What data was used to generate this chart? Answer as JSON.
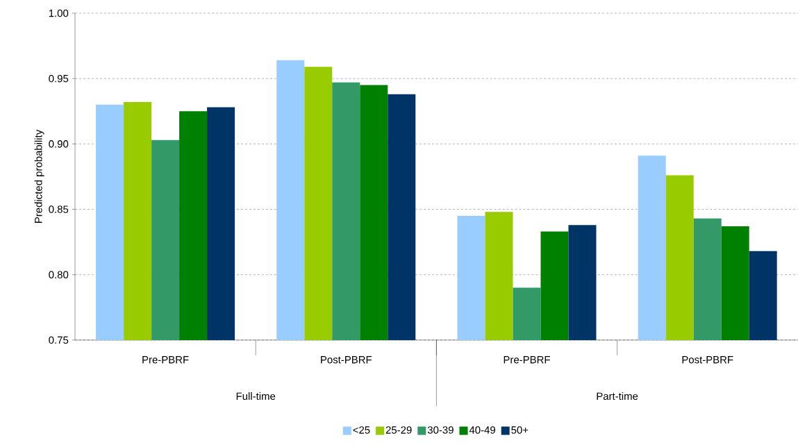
{
  "chart_data": {
    "type": "bar",
    "ylabel": "Predicted probability",
    "categories": [
      "Pre-PBRF",
      "Post-PBRF",
      "Pre-PBRF",
      "Post-PBRF"
    ],
    "annotations": [
      "Full-time",
      "Part-time"
    ],
    "series": [
      {
        "name": "<25",
        "color": "#99ccff",
        "values": [
          0.93,
          0.964,
          0.845,
          0.891
        ]
      },
      {
        "name": "25-29",
        "color": "#99cc00",
        "values": [
          0.932,
          0.959,
          0.848,
          0.876
        ]
      },
      {
        "name": "30-39",
        "color": "#339966",
        "values": [
          0.903,
          0.947,
          0.79,
          0.843
        ]
      },
      {
        "name": "40-49",
        "color": "#008000",
        "values": [
          0.925,
          0.945,
          0.833,
          0.837
        ]
      },
      {
        "name": "50+",
        "color": "#003366",
        "values": [
          0.928,
          0.938,
          0.838,
          0.818
        ]
      }
    ],
    "ylim": [
      0.75,
      1.0
    ],
    "yticks": [
      {
        "value": 0.75,
        "label": "0.75"
      },
      {
        "value": 0.8,
        "label": "0.80"
      },
      {
        "value": 0.85,
        "label": "0.85"
      },
      {
        "value": 0.9,
        "label": "0.90"
      },
      {
        "value": 0.95,
        "label": "0.95"
      },
      {
        "value": 1.0,
        "label": "1.00"
      }
    ],
    "grid": "y",
    "legend": "bottom"
  }
}
